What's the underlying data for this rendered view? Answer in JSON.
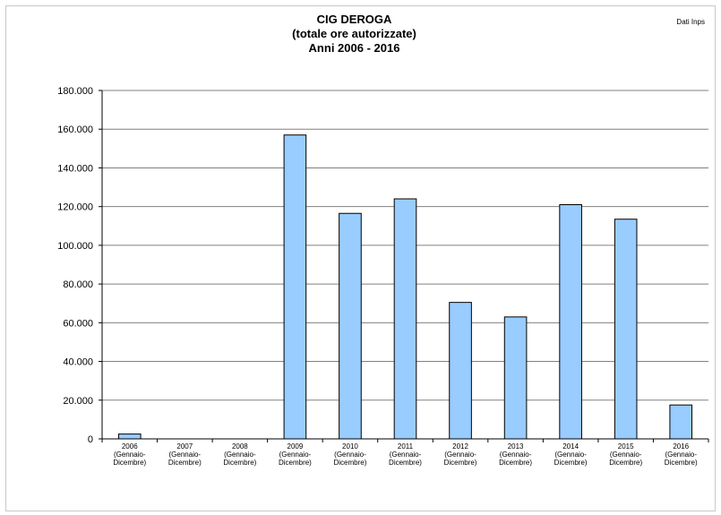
{
  "source_label": "Dati Inps",
  "chart_data": {
    "type": "bar",
    "title": [
      "CIG DEROGA",
      "(totale ore autorizzate)",
      "Anni 2006 - 2016"
    ],
    "xlabel": "",
    "ylabel": "",
    "categories": [
      [
        "2006",
        "(Gennaio-",
        "Dicembre)"
      ],
      [
        "2007",
        "(Gennaio-",
        "Dicembre)"
      ],
      [
        "2008",
        "(Gennaio-",
        "Dicembre)"
      ],
      [
        "2009",
        "(Gennaio-",
        "Dicembre)"
      ],
      [
        "2010",
        "(Gennaio-",
        "Dicembre)"
      ],
      [
        "2011",
        "(Gennaio-",
        "Dicembre)"
      ],
      [
        "2012",
        "(Gennaio-",
        "Dicembre)"
      ],
      [
        "2013",
        "(Gennaio-",
        "Dicembre)"
      ],
      [
        "2014",
        "(Gennaio-",
        "Dicembre)"
      ],
      [
        "2015",
        "(Gennaio-",
        "Dicembre)"
      ],
      [
        "2016",
        "(Gennaio-",
        "Dicembre)"
      ]
    ],
    "values": [
      2500,
      0,
      0,
      157000,
      116500,
      124000,
      70500,
      63000,
      121000,
      113500,
      17500
    ],
    "ylim": [
      0,
      180000
    ],
    "yticks": [
      0,
      20000,
      40000,
      60000,
      80000,
      100000,
      120000,
      140000,
      160000,
      180000
    ],
    "ytick_labels": [
      "0",
      "20.000",
      "40.000",
      "60.000",
      "80.000",
      "100.000",
      "120.000",
      "140.000",
      "160.000",
      "180.000"
    ],
    "grid": true,
    "bar_color": "#99ccff",
    "bar_edge_color": "#000000",
    "grid_color": "#808080"
  }
}
